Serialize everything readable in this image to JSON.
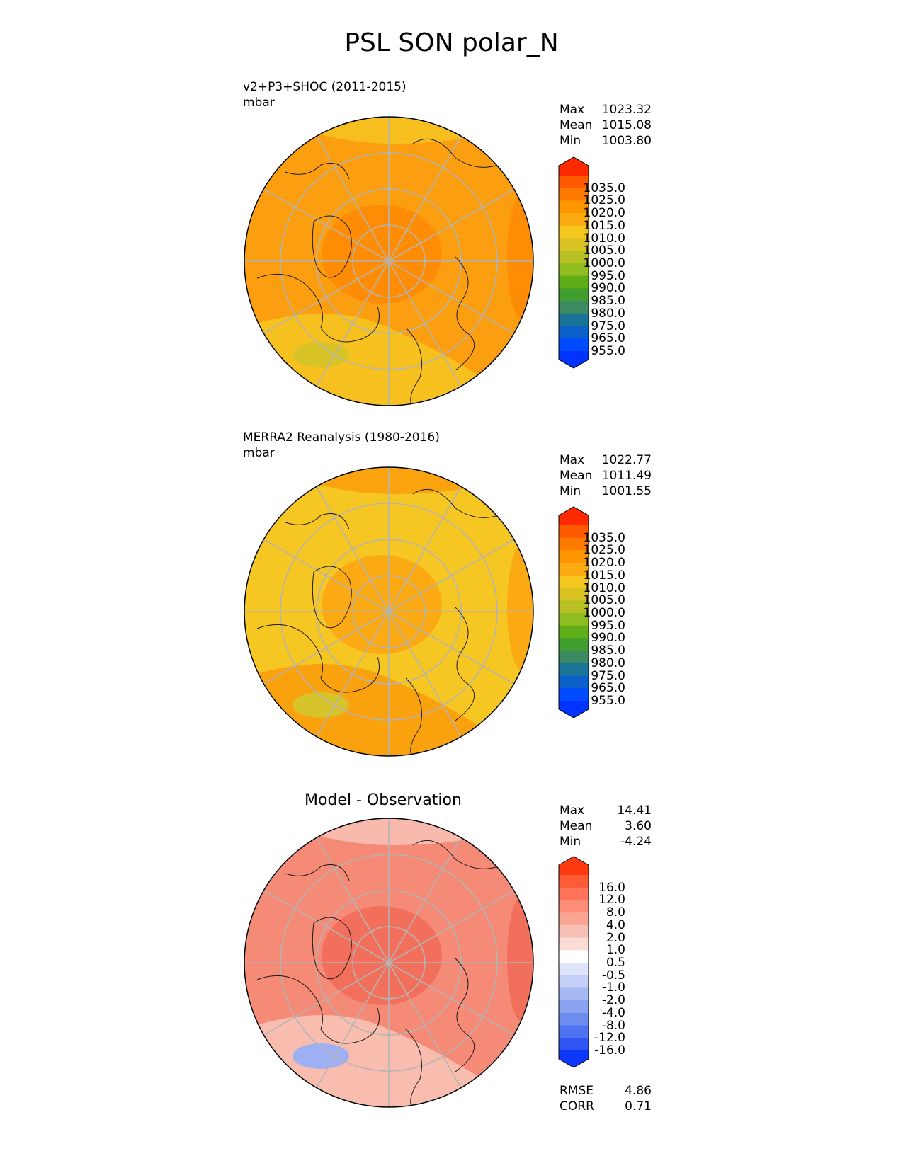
{
  "page": {
    "title": "PSL SON polar_N"
  },
  "panels": [
    {
      "id": "model",
      "title_line1": "v2+P3+SHOC (2011-2015)",
      "title_line2": "mbar",
      "center_title": "",
      "stats": [
        {
          "label": "Max",
          "value": "1023.32"
        },
        {
          "label": "Mean",
          "value": "1015.08"
        },
        {
          "label": "Min",
          "value": "1003.80"
        }
      ],
      "colorbar": {
        "labels": [
          "1035.0",
          "1025.0",
          "1020.0",
          "1015.0",
          "1010.0",
          "1005.0",
          "1000.0",
          "995.0",
          "990.0",
          "985.0",
          "980.0",
          "975.0",
          "965.0",
          "955.0"
        ],
        "colors": [
          "#ff2a00",
          "#ff5a00",
          "#ff7a00",
          "#ff9600",
          "#fbaa12",
          "#f5c61e",
          "#d9c322",
          "#b8c124",
          "#8fbd1f",
          "#5fae17",
          "#3f9e2e",
          "#3c8a63",
          "#1a7498",
          "#0b61c9",
          "#004bff",
          "#0033ff"
        ]
      },
      "map": {
        "fill_main": "#fb9f10",
        "fill_pole": "#ff8c05",
        "fill_outer": "#f5c420",
        "fill_green": "#d8c426"
      }
    },
    {
      "id": "obs",
      "title_line1": "MERRA2 Reanalysis (1980-2016)",
      "title_line2": "mbar",
      "center_title": "",
      "stats": [
        {
          "label": "Max",
          "value": "1022.77"
        },
        {
          "label": "Mean",
          "value": "1011.49"
        },
        {
          "label": "Min",
          "value": "1001.55"
        }
      ],
      "colorbar": {
        "labels": [
          "1035.0",
          "1025.0",
          "1020.0",
          "1015.0",
          "1010.0",
          "1005.0",
          "1000.0",
          "995.0",
          "990.0",
          "985.0",
          "980.0",
          "975.0",
          "965.0",
          "955.0"
        ],
        "colors": [
          "#ff2a00",
          "#ff5a00",
          "#ff7a00",
          "#ff9600",
          "#fbaa12",
          "#f5c61e",
          "#d9c322",
          "#b8c124",
          "#8fbd1f",
          "#5fae17",
          "#3f9e2e",
          "#3c8a63",
          "#1a7498",
          "#0b61c9",
          "#004bff",
          "#0033ff"
        ]
      },
      "map": {
        "fill_main": "#f6c623",
        "fill_pole": "#fbaa14",
        "fill_outer": "#fb9c0c",
        "fill_green": "#d6c42a"
      }
    },
    {
      "id": "diff",
      "title_line1": "",
      "title_line2": "",
      "center_title": "Model - Observation",
      "stats": [
        {
          "label": "Max",
          "value": "14.41"
        },
        {
          "label": "Mean",
          "value": "3.60"
        },
        {
          "label": "Min",
          "value": "-4.24"
        }
      ],
      "colorbar": {
        "labels": [
          "16.0",
          "12.0",
          "8.0",
          "4.0",
          "2.0",
          "1.0",
          "0.5",
          "-0.5",
          "-1.0",
          "-2.0",
          "-4.0",
          "-8.0",
          "-12.0",
          "-16.0"
        ],
        "colors": [
          "#ff3a10",
          "#ff5a36",
          "#ff745a",
          "#fd8d76",
          "#faa594",
          "#f8c0b4",
          "#fadcd5",
          "#ffffff",
          "#dde4fb",
          "#c3cff7",
          "#a6b9f3",
          "#8aa3f0",
          "#6d8cee",
          "#4f72f0",
          "#2f55f5",
          "#0d38fb"
        ]
      },
      "map": {
        "fill_main": "#f58a76",
        "fill_pole": "#f2705b",
        "fill_outer": "#f8c2b6",
        "fill_green": "#9cb0f3"
      },
      "extra_stats": [
        {
          "label": "RMSE",
          "value": "4.86"
        },
        {
          "label": "CORR",
          "value": "0.71"
        }
      ]
    }
  ]
}
